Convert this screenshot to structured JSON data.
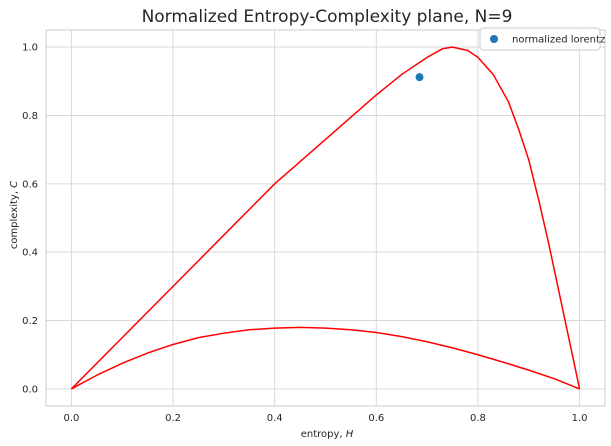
{
  "chart_data": {
    "type": "line",
    "title": "Normalized Entropy-Complexity plane, N=9",
    "xlabel": "entropy, ",
    "xlabel_var": "H",
    "ylabel": "complexity, ",
    "ylabel_var": "C",
    "xlim": [
      -0.05,
      1.05
    ],
    "ylim": [
      -0.05,
      1.05
    ],
    "x_ticks": [
      0.0,
      0.2,
      0.4,
      0.6,
      0.8,
      1.0
    ],
    "y_ticks": [
      0.0,
      0.2,
      0.4,
      0.6,
      0.8,
      1.0
    ],
    "x_tick_labels": [
      "0.0",
      "0.2",
      "0.4",
      "0.6",
      "0.8",
      "1.0"
    ],
    "y_tick_labels": [
      "0.0",
      "0.2",
      "0.4",
      "0.6",
      "0.8",
      "1.0"
    ],
    "grid": true,
    "legend": "top-right",
    "colors": {
      "curve": "#ff0000",
      "point": "#1f77b4",
      "grid": "#d9d9d9",
      "frame": "#cccccc"
    },
    "series": [
      {
        "kind": "line",
        "x": [
          0.0,
          0.05,
          0.1,
          0.15,
          0.2,
          0.25,
          0.3,
          0.35,
          0.4,
          0.45,
          0.5,
          0.55,
          0.6,
          0.65,
          0.7,
          0.75,
          0.8,
          0.85,
          0.9,
          0.95,
          1.0
        ],
        "y": [
          0.0,
          0.04,
          0.075,
          0.105,
          0.13,
          0.15,
          0.163,
          0.173,
          0.178,
          0.18,
          0.178,
          0.173,
          0.165,
          0.153,
          0.138,
          0.12,
          0.1,
          0.078,
          0.055,
          0.03,
          0.0
        ]
      },
      {
        "kind": "line",
        "x": [
          0.0,
          0.1,
          0.2,
          0.3,
          0.4,
          0.5,
          0.6,
          0.65,
          0.7,
          0.73,
          0.75,
          0.78,
          0.8,
          0.83,
          0.86,
          0.88,
          0.9,
          0.92,
          0.94,
          0.96,
          0.98,
          1.0
        ],
        "y": [
          0.0,
          0.15,
          0.3,
          0.45,
          0.6,
          0.73,
          0.86,
          0.92,
          0.97,
          0.995,
          1.0,
          0.99,
          0.97,
          0.92,
          0.84,
          0.76,
          0.67,
          0.55,
          0.42,
          0.28,
          0.14,
          0.0
        ]
      },
      {
        "kind": "scatter",
        "name": "normalized lorentz",
        "x": [
          0.685
        ],
        "y": [
          0.912
        ]
      }
    ]
  }
}
